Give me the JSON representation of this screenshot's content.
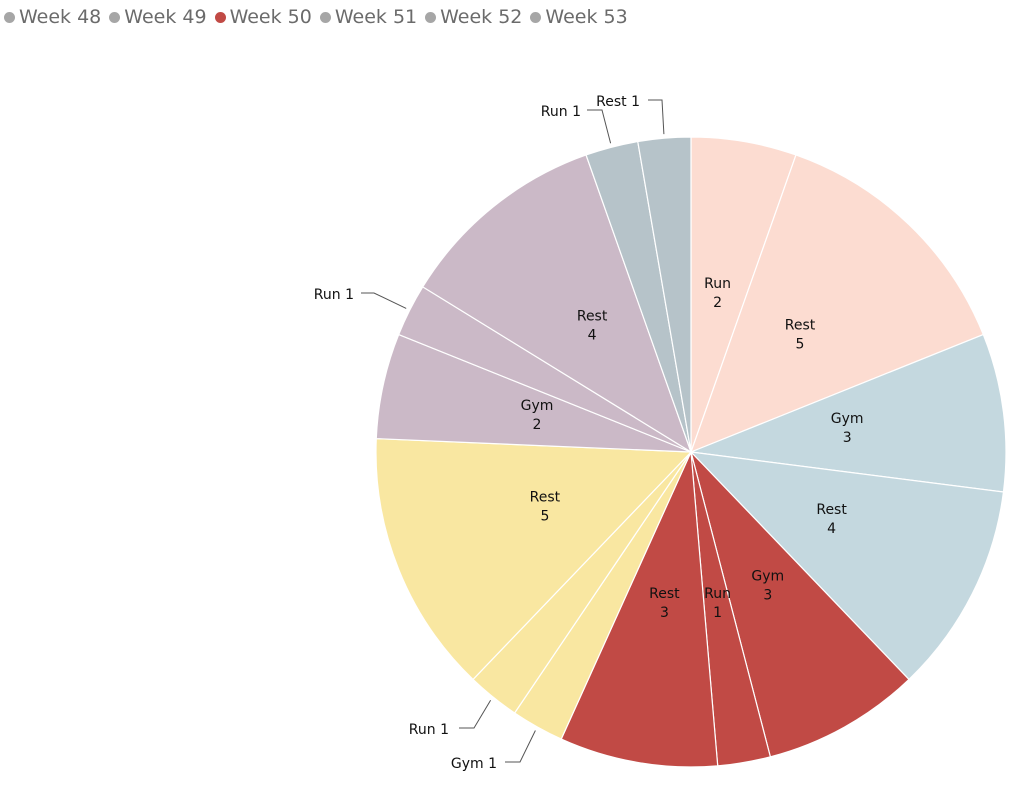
{
  "legend": {
    "items": [
      {
        "label": "Week 48",
        "color": "#a6a6a6"
      },
      {
        "label": "Week 49",
        "color": "#a6a6a6"
      },
      {
        "label": "Week 50",
        "color": "#c14a45"
      },
      {
        "label": "Week 51",
        "color": "#a6a6a6"
      },
      {
        "label": "Week 52",
        "color": "#a6a6a6"
      },
      {
        "label": "Week 53",
        "color": "#a6a6a6"
      }
    ]
  },
  "chart_data": {
    "type": "pie",
    "highlighted_series": "Week 50",
    "slices": [
      {
        "week": "Week 48",
        "activity": "Run",
        "value": 2,
        "label": "Run\n2",
        "color": "#fcdcd1",
        "label_outside": false
      },
      {
        "week": "Week 48",
        "activity": "Rest",
        "value": 5,
        "label": "Rest\n5",
        "color": "#fcdcd1",
        "label_outside": false
      },
      {
        "week": "Week 49",
        "activity": "Gym",
        "value": 3,
        "label": "Gym\n3",
        "color": "#c4d8df",
        "label_outside": false
      },
      {
        "week": "Week 49",
        "activity": "Rest",
        "value": 4,
        "label": "Rest\n4",
        "color": "#c4d8df",
        "label_outside": false
      },
      {
        "week": "Week 50",
        "activity": "Gym",
        "value": 3,
        "label": "Gym\n3",
        "color": "#c14a45",
        "label_outside": false
      },
      {
        "week": "Week 50",
        "activity": "Run",
        "value": 1,
        "label": "Run\n1",
        "color": "#c14a45",
        "label_outside": false
      },
      {
        "week": "Week 50",
        "activity": "Rest",
        "value": 3,
        "label": "Rest\n3",
        "color": "#c14a45",
        "label_outside": false
      },
      {
        "week": "Week 51",
        "activity": "Gym",
        "value": 1,
        "label": "Gym 1",
        "color": "#f9e7a1",
        "label_outside": true
      },
      {
        "week": "Week 51",
        "activity": "Run",
        "value": 1,
        "label": "Run 1",
        "color": "#f9e7a1",
        "label_outside": true
      },
      {
        "week": "Week 51",
        "activity": "Rest",
        "value": 5,
        "label": "Rest\n5",
        "color": "#f9e7a1",
        "label_outside": false
      },
      {
        "week": "Week 52",
        "activity": "Gym",
        "value": 2,
        "label": "Gym\n2",
        "color": "#cbb9c7",
        "label_outside": false
      },
      {
        "week": "Week 52",
        "activity": "Run",
        "value": 1,
        "label": "Run 1",
        "color": "#cbb9c7",
        "label_outside": true
      },
      {
        "week": "Week 52",
        "activity": "Rest",
        "value": 4,
        "label": "Rest\n4",
        "color": "#cbb9c7",
        "label_outside": false
      },
      {
        "week": "Week 53",
        "activity": "Run",
        "value": 1,
        "label": "Run 1",
        "color": "#b6c3c9",
        "label_outside": true
      },
      {
        "week": "Week 53",
        "activity": "Rest",
        "value": 1,
        "label": "Rest 1",
        "color": "#b6c3c9",
        "label_outside": true
      }
    ]
  }
}
